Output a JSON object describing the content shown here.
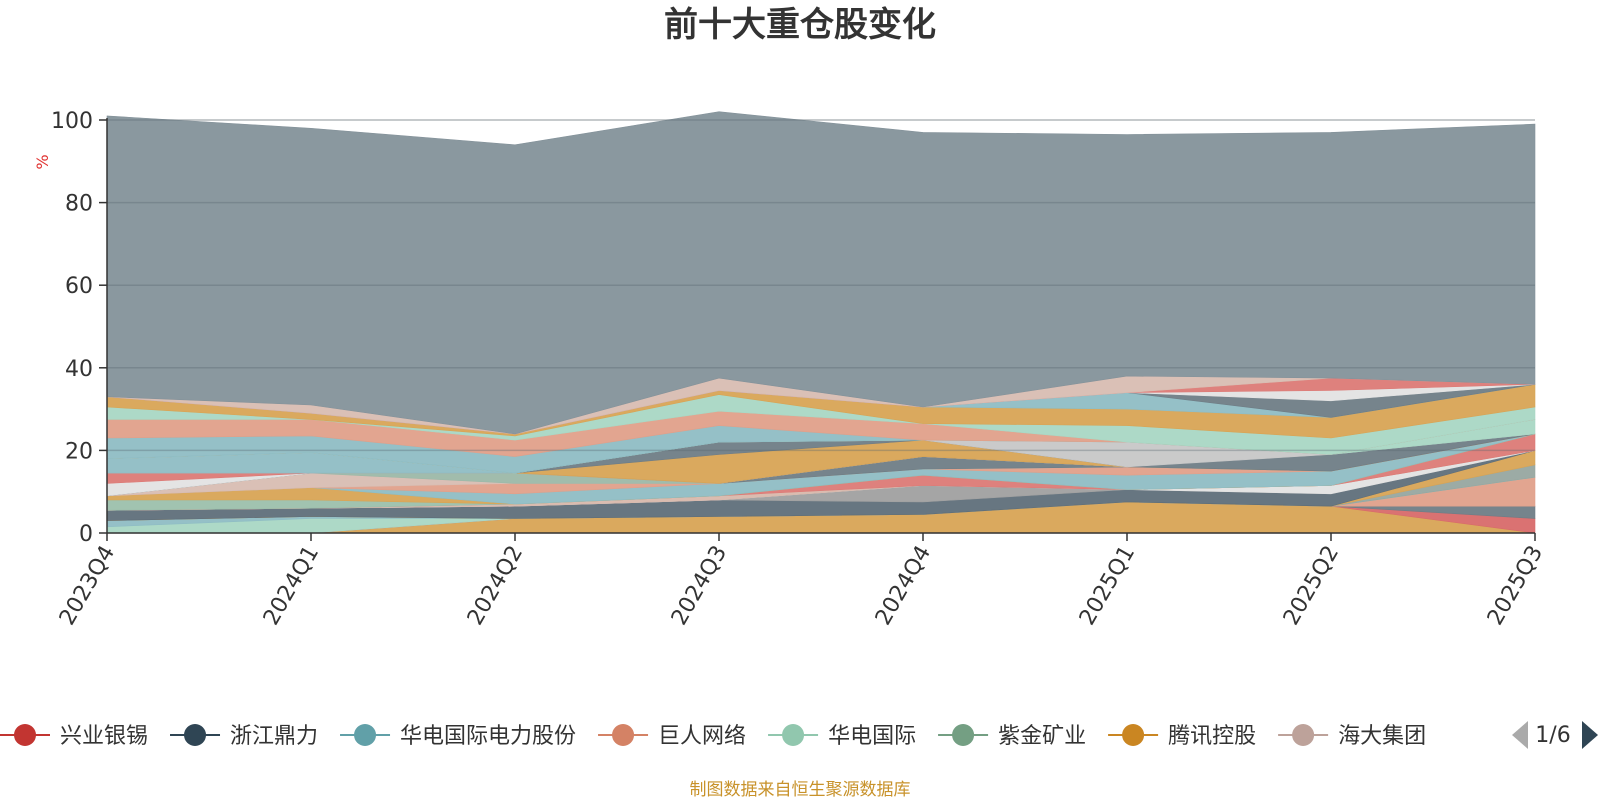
{
  "chart_data": {
    "type": "area",
    "title": "前十大重仓股变化",
    "unit_label": "%",
    "source_note": "制图数据来自恒生聚源数据库",
    "categories": [
      "2023Q4",
      "2024Q1",
      "2024Q2",
      "2024Q3",
      "2024Q4",
      "2025Q1",
      "2025Q2",
      "2025Q3"
    ],
    "ylim": [
      0,
      100
    ],
    "yticks": [
      0,
      20,
      40,
      60,
      80,
      100
    ],
    "grid": true,
    "legend_position": "bottom",
    "legend": {
      "entries": [
        {
          "name": "兴业银锡",
          "color": "#c23531"
        },
        {
          "name": "浙江鼎力",
          "color": "#2f4554"
        },
        {
          "name": "华电国际电力股份",
          "color": "#61a0a8"
        },
        {
          "name": "巨人网络",
          "color": "#d48265"
        },
        {
          "name": "华电国际",
          "color": "#91c7ae"
        },
        {
          "name": "紫金矿业",
          "color": "#749f83"
        },
        {
          "name": "腾讯控股",
          "color": "#ca8622"
        },
        {
          "name": "海大集团",
          "color": "#bda29a"
        }
      ],
      "page_indicator": "1/6"
    },
    "series": [
      {
        "color": "#d8a455",
        "values": [
          0,
          0,
          3.5,
          4,
          4.5,
          7.5,
          6.5,
          0
        ]
      },
      {
        "color": "#d86a6a",
        "values": [
          0,
          0,
          0,
          0,
          0,
          0,
          0,
          3.5
        ]
      },
      {
        "color": "#6f7d86",
        "values": [
          0,
          0,
          0,
          0,
          0,
          0,
          0,
          3
        ]
      },
      {
        "color": "#e0a08a",
        "values": [
          0,
          0,
          0,
          0,
          0,
          0,
          0,
          7
        ]
      },
      {
        "color": "#a9d7c4",
        "values": [
          1.5,
          3.5,
          0,
          0,
          0,
          0,
          0,
          0
        ]
      },
      {
        "color": "#8fbdc4",
        "values": [
          1.5,
          0.5,
          0,
          0,
          0,
          0,
          0,
          0
        ]
      },
      {
        "color": "#97a7a0",
        "values": [
          0,
          0,
          0,
          0,
          0,
          0,
          0,
          3
        ]
      },
      {
        "color": "#d8a455",
        "values": [
          0,
          0,
          0,
          0,
          0,
          0,
          0,
          3.5
        ]
      },
      {
        "color": "#5f6f7a",
        "values": [
          2.5,
          2,
          3,
          4,
          3,
          3,
          3,
          0
        ]
      },
      {
        "color": "#a0a0a0",
        "values": [
          0,
          0,
          0,
          0,
          4,
          0,
          0,
          0
        ]
      },
      {
        "color": "#e3e3e3",
        "values": [
          0,
          0,
          0,
          0,
          0,
          0,
          2,
          0
        ]
      },
      {
        "color": "#d8b8ac",
        "values": [
          0,
          0,
          0.5,
          1,
          0,
          0,
          0,
          0
        ]
      },
      {
        "color": "#dc7a76",
        "values": [
          0,
          0,
          0,
          0,
          2.5,
          0,
          0,
          4
        ]
      },
      {
        "color": "#9cc0ac",
        "values": [
          2.5,
          2,
          0,
          0,
          0,
          0,
          0,
          0
        ]
      },
      {
        "color": "#d8a455",
        "values": [
          1,
          3,
          0,
          0,
          0,
          0,
          0,
          0
        ]
      },
      {
        "color": "#8fbdc4",
        "values": [
          0,
          0,
          2.5,
          3,
          1.5,
          3.5,
          3.5,
          0
        ]
      },
      {
        "color": "#e0a08a",
        "values": [
          0,
          0,
          2.5,
          0,
          0,
          2,
          0,
          0
        ]
      },
      {
        "color": "#d8bdb2",
        "values": [
          0,
          3.5,
          0,
          0,
          0,
          0,
          0,
          0
        ]
      },
      {
        "color": "#9cb8a8",
        "values": [
          0,
          0,
          2.5,
          0,
          0,
          0,
          0,
          0
        ]
      },
      {
        "color": "#6f7d86",
        "values": [
          0,
          0,
          0,
          0,
          3,
          0,
          0,
          0
        ]
      },
      {
        "color": "#e3e3e3",
        "values": [
          3,
          0,
          0,
          0,
          0,
          0,
          0,
          0
        ]
      },
      {
        "color": "#dc7a76",
        "values": [
          2.5,
          0,
          0,
          0,
          0,
          0,
          0,
          0
        ]
      },
      {
        "color": "#8fbdc4",
        "values": [
          3.5,
          5,
          0,
          0,
          0,
          0,
          0,
          0
        ]
      },
      {
        "color": "#d8a455",
        "values": [
          0,
          0,
          0,
          7,
          4,
          0,
          0,
          0
        ]
      },
      {
        "color": "#6f7d86",
        "values": [
          0,
          0,
          0,
          3,
          0,
          0,
          4,
          0
        ]
      },
      {
        "color": "#c7c7c7",
        "values": [
          0,
          0,
          0,
          0,
          0,
          6,
          0,
          0
        ]
      },
      {
        "color": "#a9d7c4",
        "values": [
          0,
          0,
          0,
          0,
          0,
          0,
          0,
          3.5
        ]
      },
      {
        "color": "#8fbdc4",
        "values": [
          5,
          4,
          4,
          4,
          0,
          0,
          0,
          0
        ]
      },
      {
        "color": "#e0a08a",
        "values": [
          4.5,
          4,
          4,
          3.5,
          4,
          0,
          0,
          0
        ]
      },
      {
        "color": "#a9d7c4",
        "values": [
          3,
          0,
          1,
          4,
          0,
          4,
          4,
          3
        ]
      },
      {
        "color": "#d8a455",
        "values": [
          2.5,
          1.5,
          0.5,
          1,
          4,
          4,
          5,
          5.5
        ]
      },
      {
        "color": "#8fbdc4",
        "values": [
          0,
          0,
          0,
          0,
          0,
          4,
          0,
          0
        ]
      },
      {
        "color": "#6f7d86",
        "values": [
          0,
          0,
          0,
          0,
          0,
          0,
          4,
          0
        ]
      },
      {
        "color": "#e3e3e3",
        "values": [
          0,
          0,
          0,
          0,
          0,
          0,
          2.5,
          0
        ]
      },
      {
        "color": "#dc7a76",
        "values": [
          0,
          0,
          0,
          0,
          0,
          0,
          3,
          0
        ]
      },
      {
        "color": "#d8bdb2",
        "values": [
          0,
          2,
          0,
          3,
          0,
          4,
          0,
          0
        ]
      },
      {
        "color": "#84929a",
        "values": [
          68,
          67,
          70,
          64.5,
          66.5,
          58.5,
          59.5,
          63
        ]
      }
    ]
  }
}
